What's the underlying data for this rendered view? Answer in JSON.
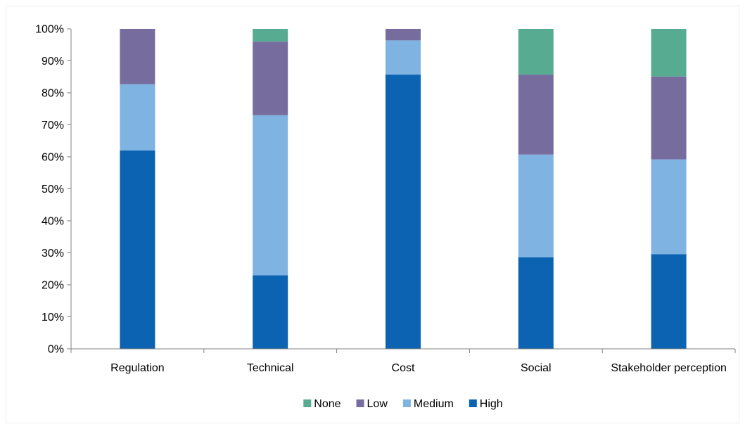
{
  "chart_data": {
    "type": "bar",
    "stacked": true,
    "categories": [
      "Regulation",
      "Technical",
      "Cost",
      "Social",
      "Stakeholder perception"
    ],
    "series": [
      {
        "name": "High",
        "values": [
          62,
          23,
          85.7,
          28.6,
          29.6
        ],
        "color": "#0B63B1"
      },
      {
        "name": "Medium",
        "values": [
          20.7,
          50,
          10.7,
          32.1,
          29.6
        ],
        "color": "#7EB3E2"
      },
      {
        "name": "Low",
        "values": [
          17.3,
          23,
          3.6,
          25,
          25.9
        ],
        "color": "#776C9E"
      },
      {
        "name": "None",
        "values": [
          0,
          4,
          0,
          14.3,
          14.9
        ],
        "color": "#57AB91"
      }
    ],
    "yticks": [
      "0%",
      "10%",
      "20%",
      "30%",
      "40%",
      "50%",
      "60%",
      "70%",
      "80%",
      "90%",
      "100%"
    ],
    "ylim": [
      0,
      100
    ],
    "legend_order": [
      "None",
      "Low",
      "Medium",
      "High"
    ],
    "legend_position": "bottom",
    "grid": false
  }
}
